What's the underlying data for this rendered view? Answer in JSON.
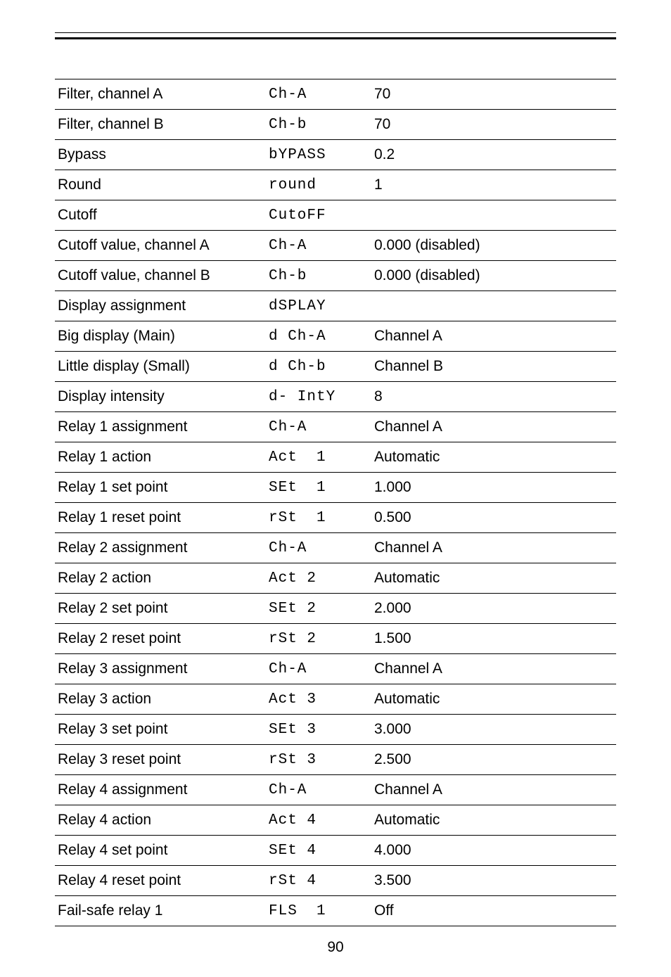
{
  "rows": [
    {
      "label": "Filter, channel A",
      "code": "Ch-A",
      "value": "70"
    },
    {
      "label": "Filter, channel B",
      "code": "Ch-b",
      "value": "70"
    },
    {
      "label": "Bypass",
      "code": "bYPASS",
      "value": "0.2"
    },
    {
      "label": "Round",
      "code": "round",
      "value": "1"
    },
    {
      "label": "Cutoff",
      "code": "CutoFF",
      "value": ""
    },
    {
      "label": "Cutoff value, channel A",
      "code": "Ch-A",
      "value": "0.000 (disabled)"
    },
    {
      "label": "Cutoff value, channel B",
      "code": "Ch-b",
      "value": "0.000 (disabled)"
    },
    {
      "label": "Display assignment",
      "code": "dSPLAY",
      "value": ""
    },
    {
      "label": "Big display (Main)",
      "code": "d Ch-A",
      "value": "Channel A"
    },
    {
      "label": "Little display (Small)",
      "code": "d Ch-b",
      "value": "Channel B"
    },
    {
      "label": "Display intensity",
      "code": "d- IntY",
      "value": "8"
    },
    {
      "label": "Relay 1 assignment",
      "code": "Ch-A",
      "value": "Channel A"
    },
    {
      "label": "Relay 1 action",
      "code": "Act  1",
      "value": "Automatic"
    },
    {
      "label": "Relay 1 set point",
      "code": "SEt  1",
      "value": "1.000"
    },
    {
      "label": "Relay 1 reset point",
      "code": "rSt  1",
      "value": "0.500"
    },
    {
      "label": "Relay 2 assignment",
      "code": "Ch-A",
      "value": "Channel A"
    },
    {
      "label": "Relay 2 action",
      "code": "Act 2",
      "value": "Automatic"
    },
    {
      "label": "Relay 2 set point",
      "code": "SEt 2",
      "value": "2.000"
    },
    {
      "label": "Relay 2 reset point",
      "code": "rSt 2",
      "value": "1.500"
    },
    {
      "label": "Relay 3 assignment",
      "code": "Ch-A",
      "value": "Channel A"
    },
    {
      "label": "Relay 3 action",
      "code": "Act 3",
      "value": "Automatic"
    },
    {
      "label": "Relay 3 set point",
      "code": "SEt 3",
      "value": "3.000"
    },
    {
      "label": "Relay 3 reset point",
      "code": "rSt 3",
      "value": "2.500"
    },
    {
      "label": "Relay 4 assignment",
      "code": "Ch-A",
      "value": "Channel A"
    },
    {
      "label": "Relay 4 action",
      "code": "Act 4",
      "value": "Automatic"
    },
    {
      "label": "Relay 4 set point",
      "code": "SEt 4",
      "value": "4.000"
    },
    {
      "label": "Relay 4 reset point",
      "code": "rSt 4",
      "value": "3.500"
    },
    {
      "label": "Fail-safe relay 1",
      "code": "FLS  1",
      "value": "Off"
    }
  ],
  "pageNumber": "90"
}
